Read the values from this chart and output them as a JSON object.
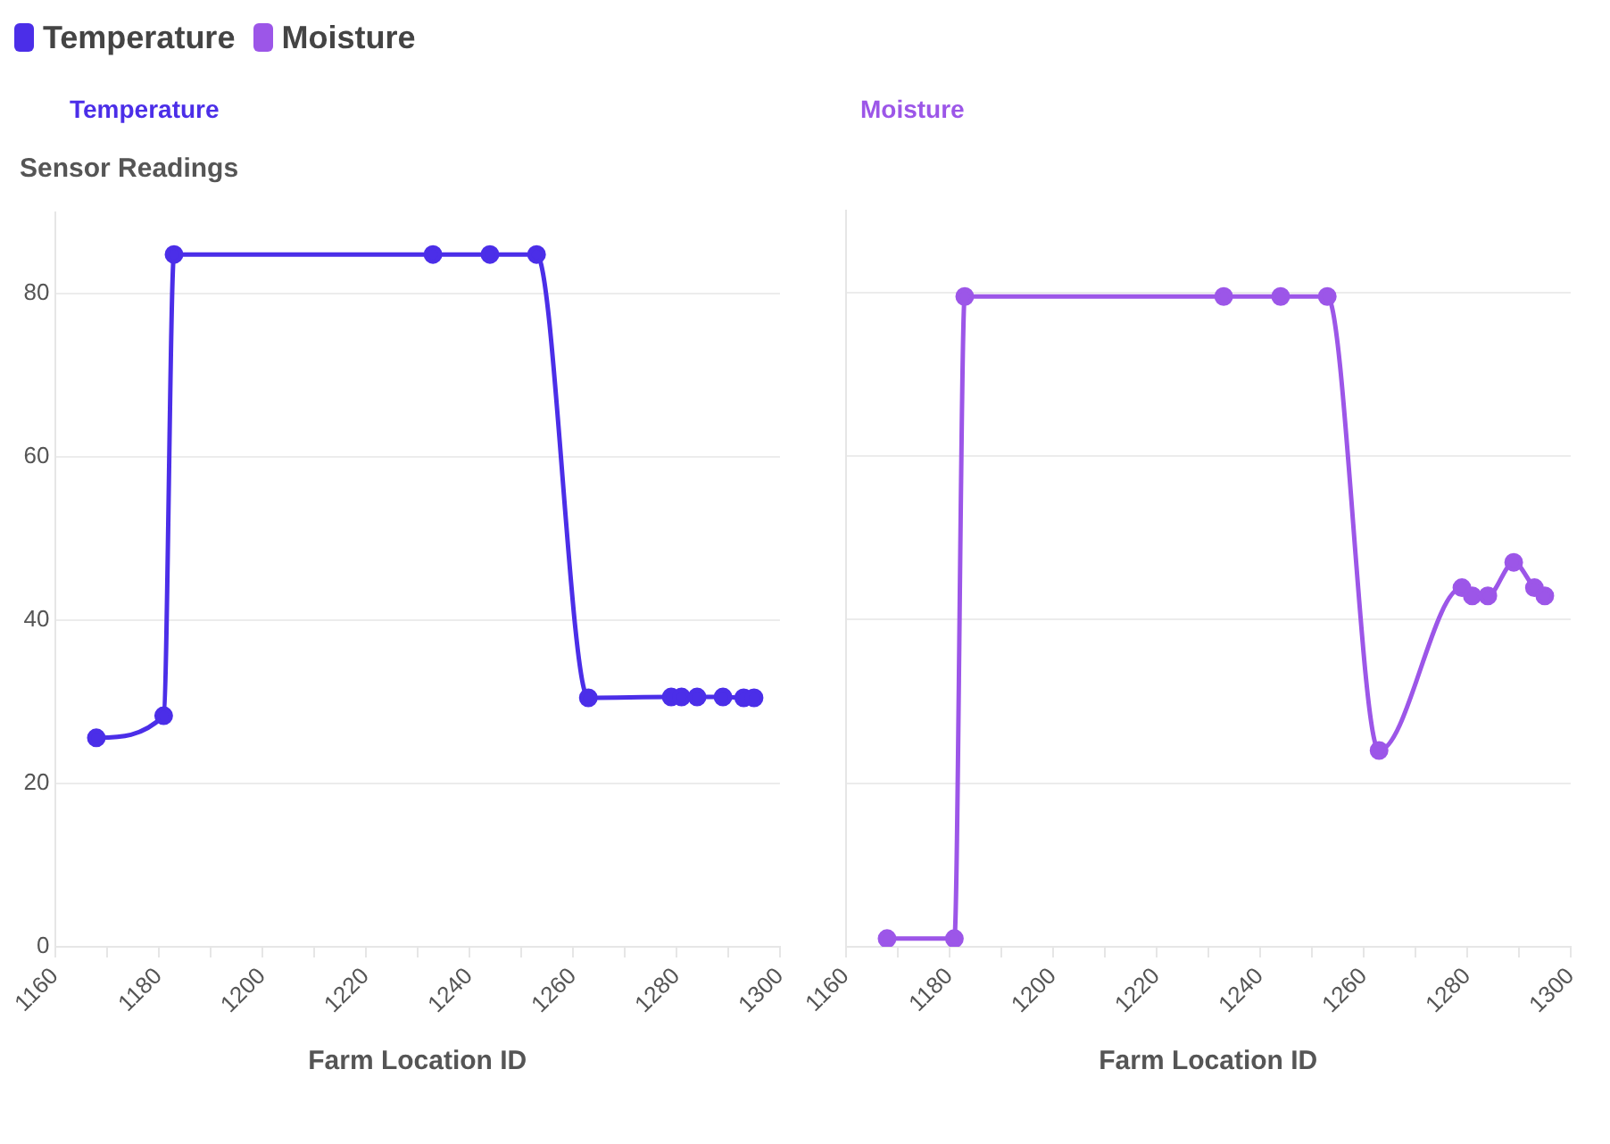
{
  "chart_data": [
    {
      "type": "line",
      "title": "Temperature",
      "ylabel": "Sensor Readings",
      "xlabel": "Farm Location ID",
      "legend": "top left",
      "grid": "y",
      "marker": "circle",
      "line_style": "solid",
      "xlim": [
        1160,
        1300
      ],
      "xticks": [
        1160,
        {
          "value": 1170,
          "label": null
        },
        1180,
        {
          "value": 1190,
          "label": null
        },
        1200,
        {
          "value": 1210,
          "label": null
        },
        1220,
        {
          "value": 1230,
          "label": null
        },
        1240,
        {
          "value": 1250,
          "label": null
        },
        1260,
        {
          "value": 1270,
          "label": null
        },
        1280,
        {
          "value": 1290,
          "label": null
        },
        1300
      ],
      "ylim": [
        0,
        90
      ],
      "yticks": [
        0,
        20,
        40,
        60,
        80
      ],
      "x": [
        1168,
        1181,
        1183,
        1233,
        1244,
        1253,
        1263,
        1279,
        1281,
        1284,
        1289,
        1293,
        1295
      ],
      "series": [
        {
          "name": "Temperature",
          "color": "#4b2ee8",
          "values": [
            25.6,
            28.3,
            84.8,
            84.8,
            84.8,
            84.8,
            30.5,
            30.6,
            30.6,
            30.6,
            30.6,
            30.5,
            30.5
          ]
        }
      ]
    },
    {
      "type": "line",
      "title": "Moisture",
      "xlabel": "Farm Location ID",
      "legend": "top left",
      "grid": "y",
      "marker": "circle",
      "line_style": "solid",
      "tick_labels": "x",
      "xlim": [
        1160,
        1300
      ],
      "xticks": [
        1160,
        {
          "value": 1170,
          "label": null
        },
        1180,
        {
          "value": 1190,
          "label": null
        },
        1200,
        {
          "value": 1210,
          "label": null
        },
        1220,
        {
          "value": 1230,
          "label": null
        },
        1240,
        {
          "value": 1250,
          "label": null
        },
        1260,
        {
          "value": 1270,
          "label": null
        },
        1280,
        {
          "value": 1290,
          "label": null
        },
        1300
      ],
      "ylim": [
        0,
        90
      ],
      "yticks": [
        0,
        20,
        40,
        60,
        80
      ],
      "x": [
        1168,
        1181,
        1183,
        1233,
        1244,
        1253,
        1263,
        1279,
        1281,
        1284,
        1289,
        1293,
        1295
      ],
      "series": [
        {
          "name": "Moisture",
          "color": "#9c56e8",
          "values": [
            1,
            1,
            79.5,
            79.5,
            79.5,
            79.5,
            24,
            43.9,
            42.9,
            42.9,
            47,
            43.9,
            42.9
          ]
        }
      ]
    }
  ]
}
